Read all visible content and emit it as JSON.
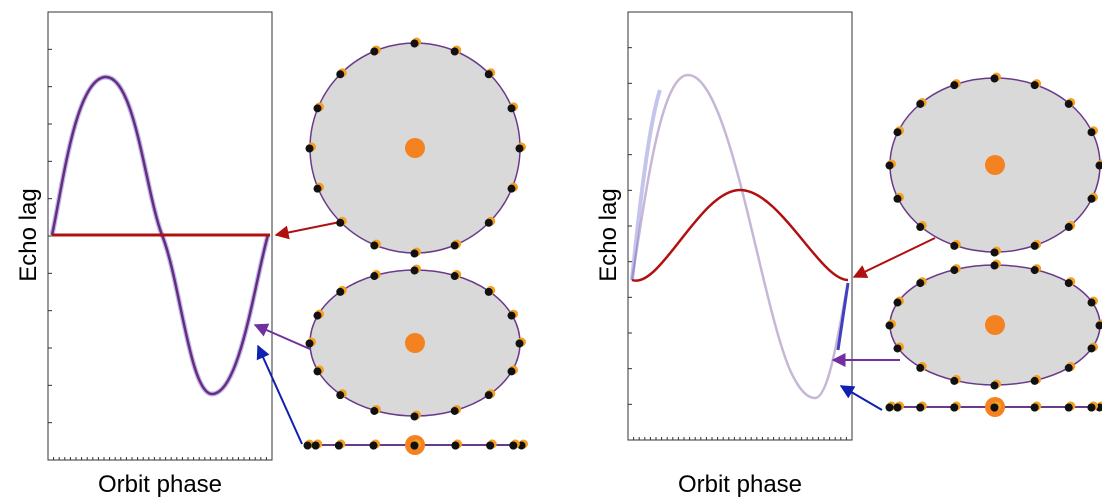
{
  "panels": [
    {
      "y_label": "Echo lag",
      "x_label": "Orbit phase"
    },
    {
      "y_label": "Echo lag",
      "x_label": "Orbit phase"
    }
  ]
}
